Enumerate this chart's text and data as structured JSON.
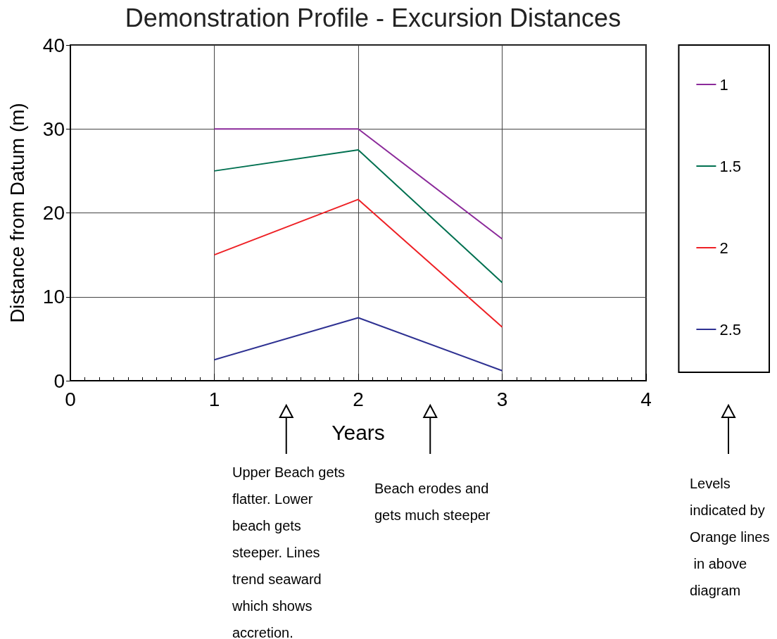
{
  "chart_data": {
    "type": "line",
    "title": "Demonstration Profile - Excursion Distances",
    "xlabel": "Years",
    "ylabel": "Distance from Datum (m)",
    "legend_title": null,
    "x": [
      1,
      2,
      3
    ],
    "series": [
      {
        "name": "1",
        "color": "#8b2a9a",
        "values": [
          30,
          30,
          16.9
        ]
      },
      {
        "name": "1.5",
        "color": "#007050",
        "values": [
          25,
          27.5,
          11.7
        ]
      },
      {
        "name": "2",
        "color": "#ee2025",
        "values": [
          15,
          21.6,
          6.4
        ]
      },
      {
        "name": "2.5",
        "color": "#2e3192",
        "values": [
          2.5,
          7.5,
          1.2
        ]
      }
    ],
    "xlim": [
      0,
      4
    ],
    "xticks": [
      0,
      1,
      2,
      3,
      4
    ],
    "ylim": [
      0,
      40
    ],
    "yticks": [
      0,
      10,
      20,
      30,
      40
    ],
    "grid": true,
    "legend": "right",
    "marker": "none",
    "line_style": "solid",
    "annotations": [
      "Upper Beach gets flatter. Lower beach gets steeper. Lines trend seaward which shows accretion.",
      "Beach erodes and gets much steeper",
      "Levels indicated by Orange lines in above diagram"
    ]
  }
}
